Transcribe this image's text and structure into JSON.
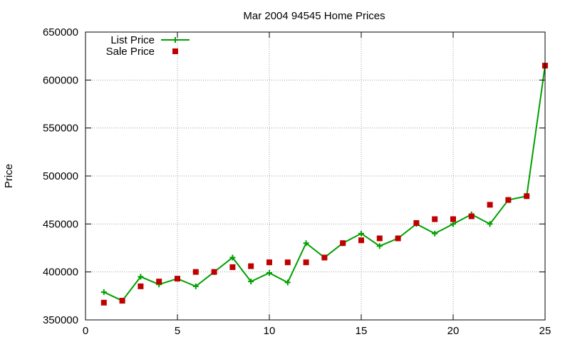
{
  "chart_data": {
    "type": "line",
    "title": "Mar 2004 94545 Home Prices",
    "xlabel": "",
    "ylabel": "Price",
    "xlim": [
      0,
      25
    ],
    "ylim": [
      350000,
      650000
    ],
    "xticks": [
      0,
      5,
      10,
      15,
      20,
      25
    ],
    "yticks": [
      350000,
      400000,
      450000,
      500000,
      550000,
      600000,
      650000
    ],
    "grid": true,
    "legend_position": "top-left",
    "series": [
      {
        "name": "List Price",
        "style": "line-cross",
        "color": "#00a000",
        "x": [
          1,
          2,
          3,
          4,
          5,
          6,
          7,
          8,
          9,
          10,
          11,
          12,
          13,
          14,
          15,
          16,
          17,
          18,
          19,
          20,
          21,
          22,
          23,
          24,
          25
        ],
        "y": [
          379000,
          370000,
          395000,
          387000,
          393000,
          385000,
          400000,
          415000,
          390000,
          399000,
          389000,
          430000,
          415000,
          430000,
          440000,
          427000,
          435000,
          450000,
          440000,
          450000,
          460000,
          450000,
          475000,
          479000,
          615000
        ]
      },
      {
        "name": "Sale Price",
        "style": "square",
        "color": "#c00000",
        "x": [
          1,
          2,
          3,
          4,
          5,
          6,
          7,
          8,
          9,
          10,
          11,
          12,
          13,
          14,
          15,
          16,
          17,
          18,
          19,
          20,
          21,
          22,
          23,
          24,
          25
        ],
        "y": [
          368000,
          370000,
          385000,
          390000,
          393000,
          400000,
          400000,
          405000,
          406000,
          410000,
          410000,
          410000,
          415000,
          430000,
          433000,
          435000,
          435000,
          451000,
          455000,
          455000,
          458000,
          470000,
          475000,
          479000,
          615000
        ]
      }
    ]
  }
}
